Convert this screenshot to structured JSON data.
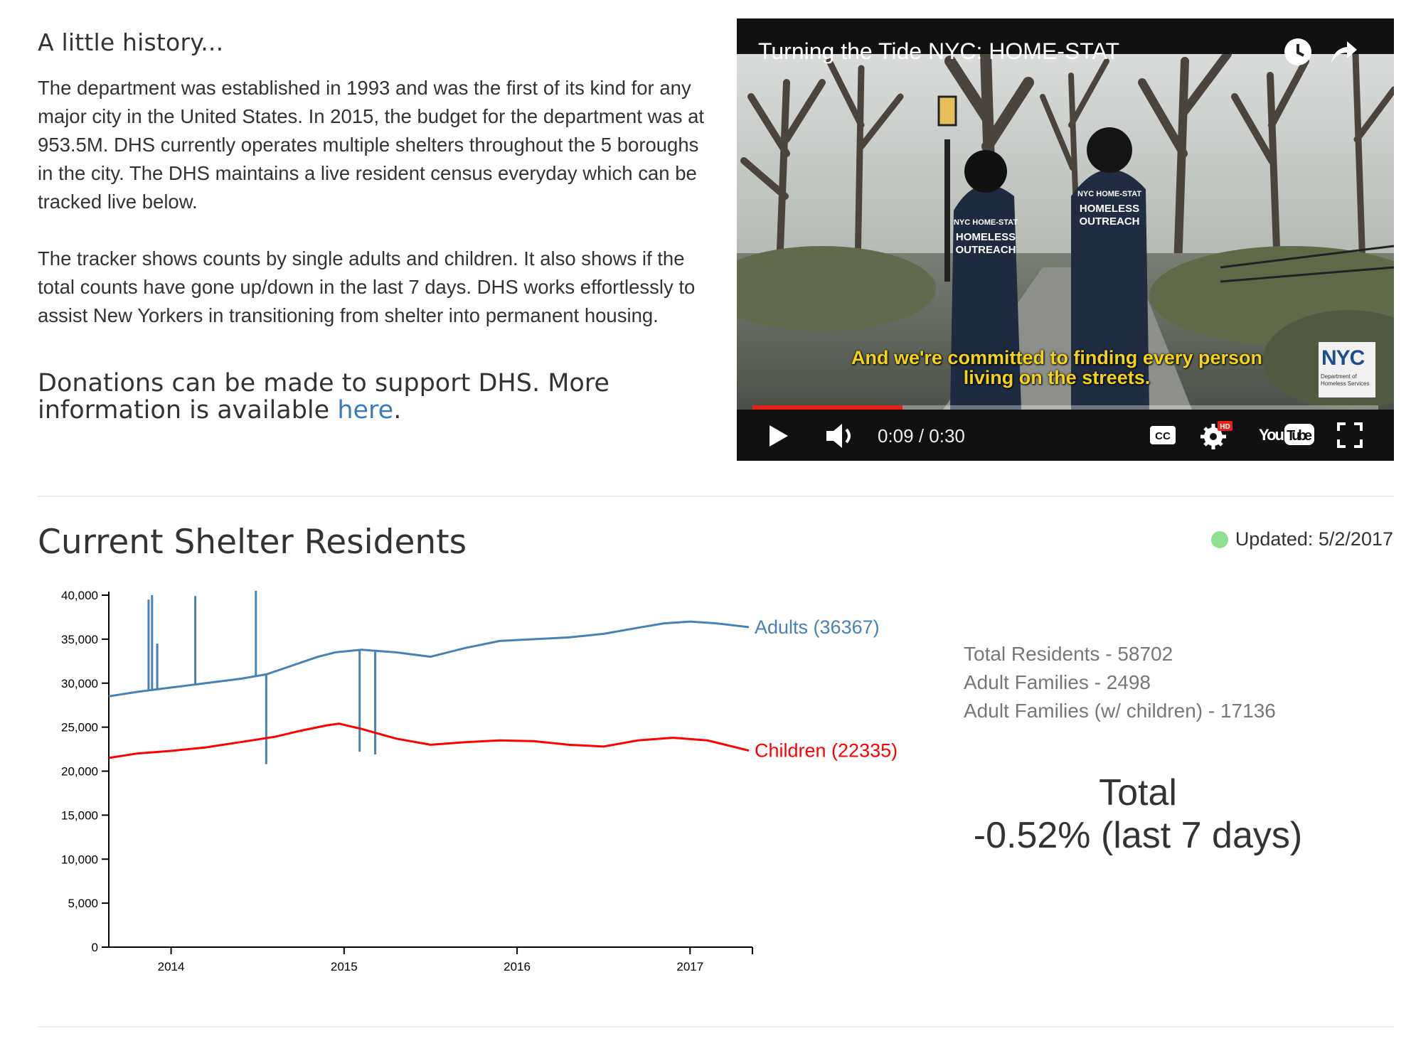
{
  "history": {
    "heading": "A little history...",
    "paragraph1": "The department was established in 1993 and was the first of its kind for any major city in the United States. In 2015, the budget for the department was at 953.5M. DHS currently operates multiple shelters throughout the 5 boroughs in the city. The DHS maintains a live resident census everyday which can be tracked live below.",
    "paragraph2": "The tracker shows counts by single adults and children. It also shows if the total counts have gone up/down in the last 7 days. DHS works effortlessly to assist New Yorkers in transitioning from shelter into permanent housing.",
    "donate_text": "Donations can be made to support DHS. More information is available",
    "donate_link": "here",
    "donate_end": "."
  },
  "video": {
    "title": "Turning the Tide NYC: HOME-STAT",
    "caption_line1": "And we're committed to finding every person",
    "caption_line2": "living on the streets.",
    "time": "0:09 / 0:30",
    "progress": 0.24,
    "jacket_line1": "NYC HOME-STAT",
    "jacket_line2": "HOMELESS",
    "jacket_line3": "OUTREACH",
    "badge_logo": "NYC",
    "badge_text": "Department of Homeless Services",
    "youtube_label": "YouTube",
    "hd_label": "HD",
    "cc_label": "CC",
    "icons": [
      "clock-icon",
      "share-icon",
      "play-icon",
      "volume-icon",
      "cc-icon",
      "settings-icon",
      "youtube-logo",
      "fullscreen-icon"
    ]
  },
  "shelter": {
    "title": "Current Shelter Residents",
    "updated": "Updated: 5/2/2017",
    "status_color": "#90e090"
  },
  "stats": {
    "total_residents": "Total Residents - 58702",
    "adult_families": "Adult Families - 2498",
    "adult_families_children": "Adult Families (w/ children) - 17136"
  },
  "total": {
    "label": "Total",
    "change": "-0.52% (last 7 days)"
  },
  "chart_data": {
    "type": "line",
    "title": "",
    "xlabel": "",
    "ylabel": "",
    "xlim": [
      2013.64,
      2017.34
    ],
    "ylim": [
      0,
      40000
    ],
    "y_ticks": [
      0,
      5000,
      10000,
      15000,
      20000,
      25000,
      30000,
      35000,
      40000
    ],
    "y_tick_labels": [
      "0",
      "5,000",
      "10,000",
      "15,000",
      "20,000",
      "25,000",
      "30,000",
      "35,000",
      "40,000"
    ],
    "x_ticks": [
      2014,
      2015,
      2016,
      2017
    ],
    "x_tick_labels": [
      "2014",
      "2015",
      "2016",
      "2017"
    ],
    "grid": false,
    "series": [
      {
        "name": "Adults (36367)",
        "color": "#4682b4",
        "x": [
          2013.64,
          2013.8,
          2014.0,
          2014.2,
          2014.4,
          2014.55,
          2014.7,
          2014.85,
          2014.95,
          2015.1,
          2015.3,
          2015.5,
          2015.7,
          2015.9,
          2016.1,
          2016.3,
          2016.5,
          2016.7,
          2016.85,
          2017.0,
          2017.15,
          2017.34
        ],
        "values": [
          28500,
          29000,
          29500,
          30000,
          30500,
          31000,
          32000,
          33000,
          33500,
          33800,
          33500,
          33000,
          34000,
          34800,
          35000,
          35200,
          35600,
          36300,
          36800,
          37000,
          36800,
          36367
        ],
        "spikes": [
          {
            "x": 2013.87,
            "value": 39500
          },
          {
            "x": 2013.89,
            "value": 40000
          },
          {
            "x": 2013.92,
            "value": 34500
          },
          {
            "x": 2014.14,
            "value": 39900
          },
          {
            "x": 2014.49,
            "value": 40500
          },
          {
            "x": 2014.55,
            "value": 20800
          },
          {
            "x": 2015.09,
            "value": 22200
          },
          {
            "x": 2015.18,
            "value": 21900
          }
        ]
      },
      {
        "name": "Children (22335)",
        "color": "#ff0000",
        "x": [
          2013.64,
          2013.8,
          2014.0,
          2014.2,
          2014.4,
          2014.6,
          2014.75,
          2014.9,
          2014.97,
          2015.1,
          2015.3,
          2015.5,
          2015.7,
          2015.9,
          2016.1,
          2016.3,
          2016.5,
          2016.7,
          2016.9,
          2017.1,
          2017.34
        ],
        "values": [
          21500,
          22000,
          22300,
          22700,
          23300,
          23900,
          24600,
          25200,
          25400,
          24800,
          23700,
          23000,
          23300,
          23500,
          23400,
          23000,
          22800,
          23500,
          23800,
          23500,
          22335
        ]
      }
    ]
  }
}
